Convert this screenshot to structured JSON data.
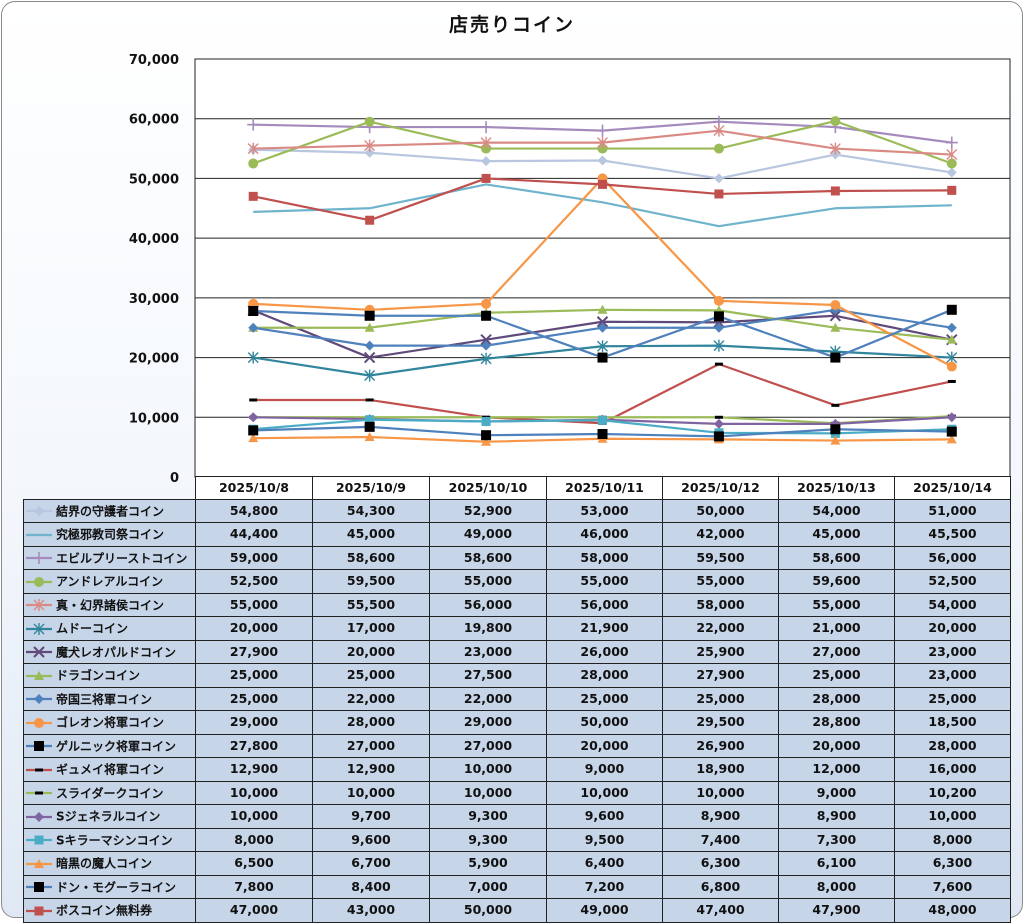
{
  "chart_data": {
    "type": "line",
    "title": "店売りコイン",
    "xlabel": "",
    "ylabel": "",
    "ylim": [
      0,
      70000
    ],
    "yticks": [
      0,
      10000,
      20000,
      30000,
      40000,
      50000,
      60000,
      70000
    ],
    "ytick_labels": [
      "0",
      "10,000",
      "20,000",
      "30,000",
      "40,000",
      "50,000",
      "60,000",
      "70,000"
    ],
    "grid": true,
    "legend": "data-table-below",
    "categories": [
      "2025/10/8",
      "2025/10/9",
      "2025/10/10",
      "2025/10/11",
      "2025/10/12",
      "2025/10/13",
      "2025/10/14"
    ],
    "series": [
      {
        "name": "結界の守護者コイン",
        "color": "#b8c6e0",
        "marker": "diamond",
        "values": [
          54800,
          54300,
          52900,
          53000,
          50000,
          54000,
          51000
        ],
        "labels": [
          "54,800",
          "54,300",
          "52,900",
          "53,000",
          "50,000",
          "54,000",
          "51,000"
        ]
      },
      {
        "name": "究極邪教司祭コイン",
        "color": "#6fb3cc",
        "marker": "none",
        "values": [
          44400,
          45000,
          49000,
          46000,
          42000,
          45000,
          45500
        ],
        "labels": [
          "44,400",
          "45,000",
          "49,000",
          "46,000",
          "42,000",
          "45,000",
          "45,500"
        ]
      },
      {
        "name": "エビルプリーストコイン",
        "color": "#a58bbd",
        "marker": "plus",
        "values": [
          59000,
          58600,
          58600,
          58000,
          59500,
          58600,
          56000
        ],
        "labels": [
          "59,000",
          "58,600",
          "58,600",
          "58,000",
          "59,500",
          "58,600",
          "56,000"
        ]
      },
      {
        "name": "アンドレアルコイン",
        "color": "#9bbb59",
        "marker": "circle",
        "values": [
          52500,
          59500,
          55000,
          55000,
          55000,
          59600,
          52500
        ],
        "labels": [
          "52,500",
          "59,500",
          "55,000",
          "55,000",
          "55,000",
          "59,600",
          "52,500"
        ]
      },
      {
        "name": "真・幻界諸侯コイン",
        "color": "#d98a84",
        "marker": "star",
        "values": [
          55000,
          55500,
          56000,
          56000,
          58000,
          55000,
          54000
        ],
        "labels": [
          "55,000",
          "55,500",
          "56,000",
          "56,000",
          "58,000",
          "55,000",
          "54,000"
        ]
      },
      {
        "name": "ムドーコイン",
        "color": "#31859c",
        "marker": "star",
        "values": [
          20000,
          17000,
          19800,
          21900,
          22000,
          21000,
          20000
        ],
        "labels": [
          "20,000",
          "17,000",
          "19,800",
          "21,900",
          "22,000",
          "21,000",
          "20,000"
        ]
      },
      {
        "name": "魔犬レオパルドコイン",
        "color": "#604a7b",
        "marker": "x",
        "values": [
          27900,
          20000,
          23000,
          26000,
          25900,
          27000,
          23000
        ],
        "labels": [
          "27,900",
          "20,000",
          "23,000",
          "26,000",
          "25,900",
          "27,000",
          "23,000"
        ]
      },
      {
        "name": "ドラゴンコイン",
        "color": "#9bbb59",
        "marker": "triangle",
        "values": [
          25000,
          25000,
          27500,
          28000,
          27900,
          25000,
          23000
        ],
        "labels": [
          "25,000",
          "25,000",
          "27,500",
          "28,000",
          "27,900",
          "25,000",
          "23,000"
        ]
      },
      {
        "name": "帝国三将軍コイン",
        "color": "#4f81bd",
        "marker": "diamond",
        "values": [
          25000,
          22000,
          22000,
          25000,
          25000,
          28000,
          25000
        ],
        "labels": [
          "25,000",
          "22,000",
          "22,000",
          "25,000",
          "25,000",
          "28,000",
          "25,000"
        ]
      },
      {
        "name": "ゴレオン将軍コイン",
        "color": "#f79646",
        "marker": "circle",
        "values": [
          29000,
          28000,
          29000,
          50000,
          29500,
          28800,
          18500
        ],
        "labels": [
          "29,000",
          "28,000",
          "29,000",
          "50,000",
          "29,500",
          "28,800",
          "18,500"
        ]
      },
      {
        "name": "ゲルニック将軍コイン",
        "color": "#4f81bd",
        "marker": "square-black",
        "values": [
          27800,
          27000,
          27000,
          20000,
          26900,
          20000,
          28000
        ],
        "labels": [
          "27,800",
          "27,000",
          "27,000",
          "20,000",
          "26,900",
          "20,000",
          "28,000"
        ]
      },
      {
        "name": "ギュメイ将軍コイン",
        "color": "#c0504d",
        "marker": "dash-black",
        "values": [
          12900,
          12900,
          10000,
          9000,
          18900,
          12000,
          16000
        ],
        "labels": [
          "12,900",
          "12,900",
          "10,000",
          "9,000",
          "18,900",
          "12,000",
          "16,000"
        ]
      },
      {
        "name": "スライダークコイン",
        "color": "#9bbb59",
        "marker": "dash-black",
        "values": [
          10000,
          10000,
          10000,
          10000,
          10000,
          9000,
          10200
        ],
        "labels": [
          "10,000",
          "10,000",
          "10,000",
          "10,000",
          "10,000",
          "9,000",
          "10,200"
        ]
      },
      {
        "name": "Sジェネラルコイン",
        "color": "#8064a2",
        "marker": "diamond",
        "values": [
          10000,
          9700,
          9300,
          9600,
          8900,
          8900,
          10000
        ],
        "labels": [
          "10,000",
          "9,700",
          "9,300",
          "9,600",
          "8,900",
          "8,900",
          "10,000"
        ]
      },
      {
        "name": "Sキラーマシンコイン",
        "color": "#4bacc6",
        "marker": "square",
        "values": [
          8000,
          9600,
          9300,
          9500,
          7400,
          7300,
          8000
        ],
        "labels": [
          "8,000",
          "9,600",
          "9,300",
          "9,500",
          "7,400",
          "7,300",
          "8,000"
        ]
      },
      {
        "name": "暗黒の魔人コイン",
        "color": "#f79646",
        "marker": "triangle",
        "values": [
          6500,
          6700,
          5900,
          6400,
          6300,
          6100,
          6300
        ],
        "labels": [
          "6,500",
          "6,700",
          "5,900",
          "6,400",
          "6,300",
          "6,100",
          "6,300"
        ]
      },
      {
        "name": "ドン・モグーラコイン",
        "color": "#4f81bd",
        "marker": "square-black",
        "values": [
          7800,
          8400,
          7000,
          7200,
          6800,
          8000,
          7600
        ],
        "labels": [
          "7,800",
          "8,400",
          "7,000",
          "7,200",
          "6,800",
          "8,000",
          "7,600"
        ]
      },
      {
        "name": "ボスコイン無料券",
        "color": "#c0504d",
        "marker": "square",
        "values": [
          47000,
          43000,
          50000,
          49000,
          47400,
          47900,
          48000
        ],
        "labels": [
          "47,000",
          "43,000",
          "50,000",
          "49,000",
          "47,400",
          "47,900",
          "48,000"
        ]
      }
    ]
  }
}
